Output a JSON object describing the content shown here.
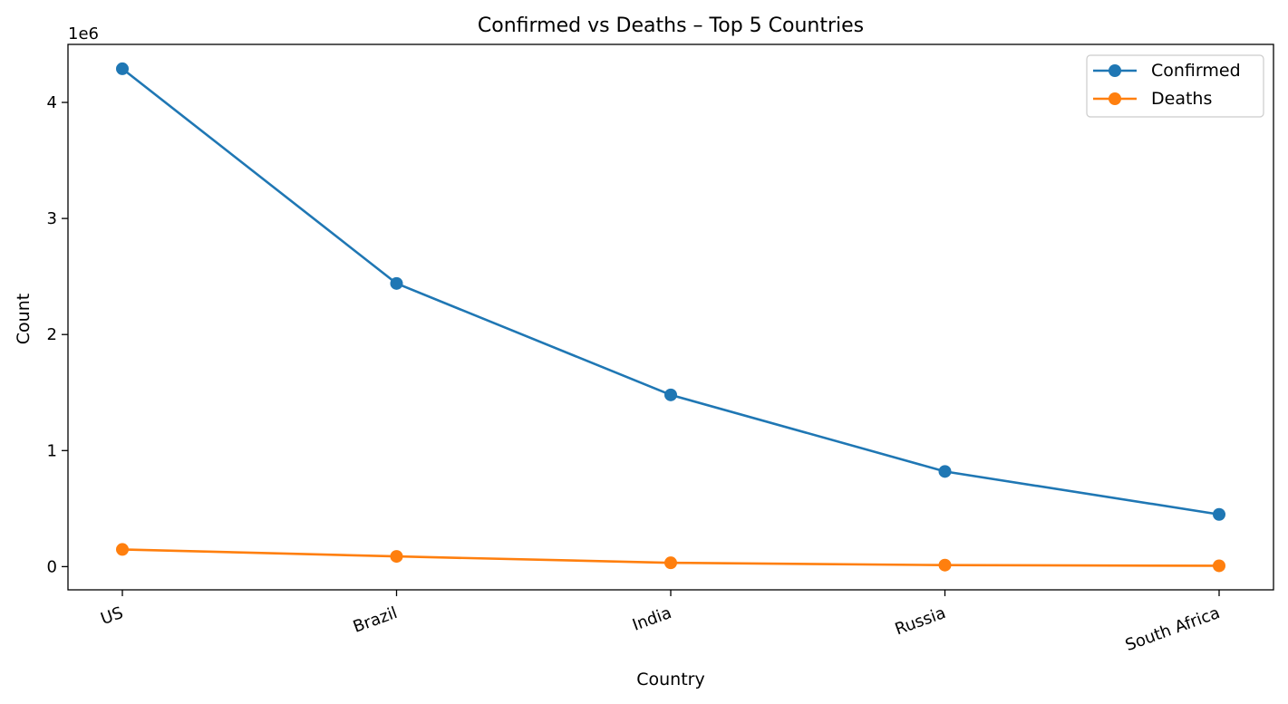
{
  "chart_data": {
    "type": "line",
    "title": "Confirmed vs Deaths – Top 5 Countries",
    "xlabel": "Country",
    "ylabel": "Count",
    "offset_label": "1e6",
    "categories": [
      "US",
      "Brazil",
      "India",
      "Russia",
      "South Africa"
    ],
    "ylim": [
      -0.2,
      4.5
    ],
    "y_scale_note": "values in millions (1e6)",
    "y_ticks": [
      {
        "value": 0,
        "label": "0"
      },
      {
        "value": 1,
        "label": "1"
      },
      {
        "value": 2,
        "label": "2"
      },
      {
        "value": 3,
        "label": "3"
      },
      {
        "value": 4,
        "label": "4"
      }
    ],
    "grid": false,
    "legend_position": "top-right",
    "series": [
      {
        "name": "Confirmed",
        "color": "#1f77b4",
        "values": [
          4.29,
          2.44,
          1.48,
          0.82,
          0.45
        ]
      },
      {
        "name": "Deaths",
        "color": "#ff7f0e",
        "values": [
          0.148,
          0.088,
          0.033,
          0.013,
          0.007
        ]
      }
    ]
  }
}
